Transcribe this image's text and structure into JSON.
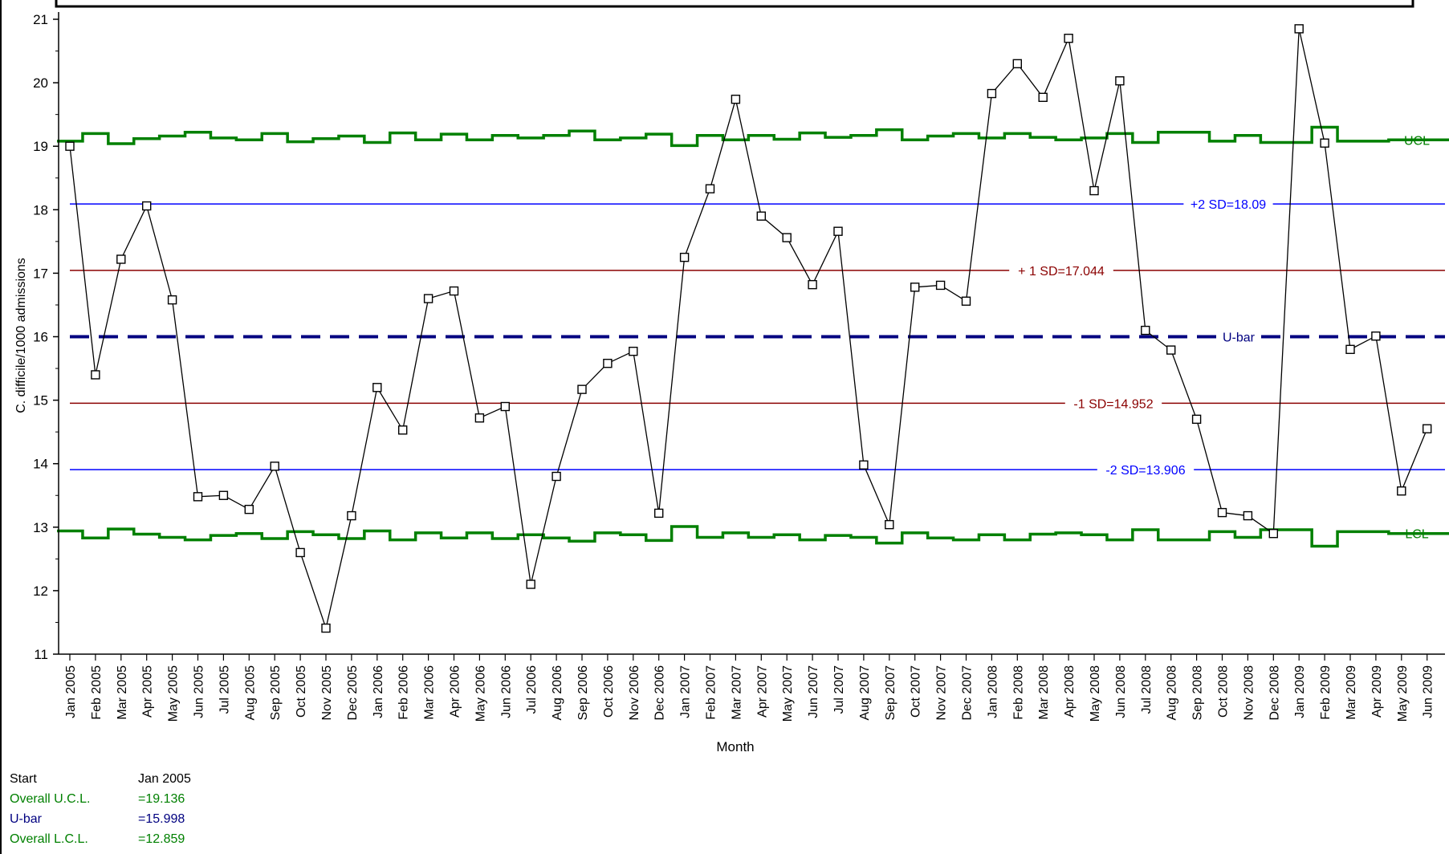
{
  "chart_data": {
    "type": "line",
    "title": "",
    "xlabel": "Month",
    "ylabel": "C. difficile/1000 admissions",
    "ylim": [
      11,
      21
    ],
    "yticks": [
      "11",
      "12",
      "13",
      "14",
      "15",
      "16",
      "17",
      "18",
      "19",
      "20",
      "21"
    ],
    "categories": [
      "Jan 2005",
      "Feb 2005",
      "Mar 2005",
      "Apr 2005",
      "May 2005",
      "Jun 2005",
      "Jul 2005",
      "Aug 2005",
      "Sep 2005",
      "Oct 2005",
      "Nov 2005",
      "Dec 2005",
      "Jan 2006",
      "Feb 2006",
      "Mar 2006",
      "Apr 2006",
      "May 2006",
      "Jun 2006",
      "Jul 2006",
      "Aug 2006",
      "Sep 2006",
      "Oct 2006",
      "Nov 2006",
      "Dec 2006",
      "Jan 2007",
      "Feb 2007",
      "Mar 2007",
      "Apr 2007",
      "May 2007",
      "Jun 2007",
      "Jul 2007",
      "Aug 2007",
      "Sep 2007",
      "Oct 2007",
      "Nov 2007",
      "Dec 2007",
      "Jan 2008",
      "Feb 2008",
      "Mar 2008",
      "Apr 2008",
      "May 2008",
      "Jun 2008",
      "Jul 2008",
      "Aug 2008",
      "Sep 2008",
      "Oct 2008",
      "Nov 2008",
      "Dec 2008",
      "Jan 2009",
      "Feb 2009",
      "Mar 2009",
      "Apr 2009",
      "May 2009",
      "Jun 2009"
    ],
    "series": [
      {
        "values": [
          19.0,
          15.4,
          17.22,
          18.06,
          16.58,
          13.48,
          13.5,
          13.28,
          13.96,
          12.6,
          11.41,
          13.18,
          15.2,
          14.53,
          16.6,
          16.72,
          14.72,
          14.9,
          12.1,
          13.8,
          15.17,
          15.58,
          15.77,
          13.22,
          17.25,
          18.33,
          19.74,
          17.9,
          17.56,
          16.82,
          17.66,
          13.98,
          13.04,
          16.78,
          16.81,
          16.56,
          19.83,
          20.3,
          19.77,
          20.7,
          18.3,
          20.03,
          16.1,
          15.79,
          14.7,
          13.23,
          13.18,
          12.9,
          20.85,
          19.05,
          15.8,
          16.01,
          13.57,
          14.55
        ],
        "color": "#000000"
      },
      {
        "name": "UCL",
        "values": [
          19.08,
          19.2,
          19.04,
          19.12,
          19.16,
          19.22,
          19.13,
          19.1,
          19.2,
          19.07,
          19.12,
          19.16,
          19.06,
          19.21,
          19.1,
          19.19,
          19.1,
          19.17,
          19.13,
          19.17,
          19.24,
          19.1,
          19.13,
          19.19,
          19.01,
          19.17,
          19.1,
          19.17,
          19.11,
          19.21,
          19.14,
          19.17,
          19.26,
          19.1,
          19.16,
          19.2,
          19.13,
          19.2,
          19.14,
          19.1,
          19.13,
          19.2,
          19.06,
          19.22,
          19.22,
          19.08,
          19.17,
          19.06,
          19.06,
          19.3,
          19.08,
          19.08,
          19.1,
          19.1
        ],
        "color": "#008000"
      },
      {
        "name": "LCL",
        "values": [
          12.94,
          12.83,
          12.97,
          12.89,
          12.84,
          12.8,
          12.87,
          12.9,
          12.82,
          12.93,
          12.88,
          12.82,
          12.94,
          12.8,
          12.91,
          12.83,
          12.91,
          12.82,
          12.88,
          12.83,
          12.78,
          12.91,
          12.88,
          12.79,
          13.01,
          12.84,
          12.91,
          12.84,
          12.88,
          12.8,
          12.87,
          12.84,
          12.75,
          12.91,
          12.83,
          12.8,
          12.88,
          12.8,
          12.89,
          12.91,
          12.88,
          12.8,
          12.96,
          12.8,
          12.8,
          12.93,
          12.84,
          12.96,
          12.96,
          12.7,
          12.93,
          12.93,
          12.9,
          12.9
        ],
        "color": "#008000"
      }
    ],
    "reference_lines": [
      {
        "label": "+2 SD=18.09",
        "value": 18.09,
        "color": "#0000ff",
        "dashed": false
      },
      {
        "label": "+ 1 SD=17.044",
        "value": 17.044,
        "color": "#8b0000",
        "dashed": false
      },
      {
        "label": "U-bar",
        "value": 16.0,
        "color": "#000080",
        "dashed": true
      },
      {
        "label": "-1 SD=14.952",
        "value": 14.952,
        "color": "#8b0000",
        "dashed": false
      },
      {
        "label": "-2 SD=13.906",
        "value": 13.906,
        "color": "#0000ff",
        "dashed": false
      }
    ],
    "grid": false,
    "legend": "none"
  },
  "footer": {
    "rows": [
      {
        "label": "Start",
        "value": "Jan 2005",
        "color": "#000000"
      },
      {
        "label": "Overall U.C.L.",
        "value": "=19.136",
        "color": "#008000"
      },
      {
        "label": "U-bar",
        "value": "=15.998",
        "color": "#000080"
      },
      {
        "label": "Overall L.C.L.",
        "value": "=12.859",
        "color": "#008000"
      }
    ]
  }
}
